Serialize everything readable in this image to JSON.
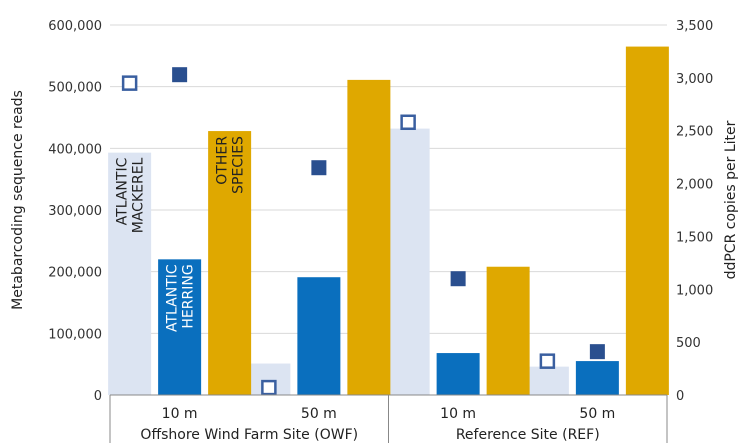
{
  "chart_data": {
    "type": "bar",
    "y_left": {
      "label": "Metabarcoding sequence reads",
      "ylim": [
        0,
        600000
      ],
      "ticks": [
        "0",
        "100,000",
        "200,000",
        "300,000",
        "400,000",
        "500,000",
        "600,000"
      ]
    },
    "y_right": {
      "label": "ddPCR copies per Liter",
      "ylim": [
        0,
        3500
      ],
      "ticks": [
        "0",
        "500",
        "1,000",
        "1,500",
        "2,000",
        "2,500",
        "3,000",
        "3,500"
      ]
    },
    "sites": [
      {
        "label": "Offshore Wind Farm Site (OWF)",
        "depths": [
          "10 m",
          "50 m"
        ]
      },
      {
        "label": "Reference Site (REF)",
        "depths": [
          "10 m",
          "50 m"
        ]
      }
    ],
    "series": [
      {
        "name": "ATLANTIC MACKEREL",
        "label_lines": [
          "ATLANTIC",
          "MACKEREL"
        ],
        "color": "#dce4f2",
        "label_color": "#222222",
        "values": [
          393000,
          51000,
          432000,
          46000
        ]
      },
      {
        "name": "ATLANTIC HERRING",
        "label_lines": [
          "ATLANTIC",
          "HERRING"
        ],
        "color": "#0a6fbe",
        "label_color": "#ffffff",
        "values": [
          220000,
          191000,
          68000,
          55000
        ]
      },
      {
        "name": "OTHER SPECIES",
        "label_lines": [
          "OTHER",
          "SPECIES"
        ],
        "color": "#dfa800",
        "label_color": "#222222",
        "values": [
          428000,
          511000,
          208000,
          565000
        ]
      }
    ],
    "ddpcr": [
      {
        "series": "ATLANTIC MACKEREL",
        "marker": "open-square",
        "stroke": "#3a5fa0",
        "values": [
          2950,
          70,
          2580,
          320
        ]
      },
      {
        "series": "ATLANTIC HERRING",
        "marker": "filled-square",
        "fill": "#2a4f8f",
        "values": [
          3030,
          2150,
          1100,
          410
        ]
      }
    ]
  }
}
